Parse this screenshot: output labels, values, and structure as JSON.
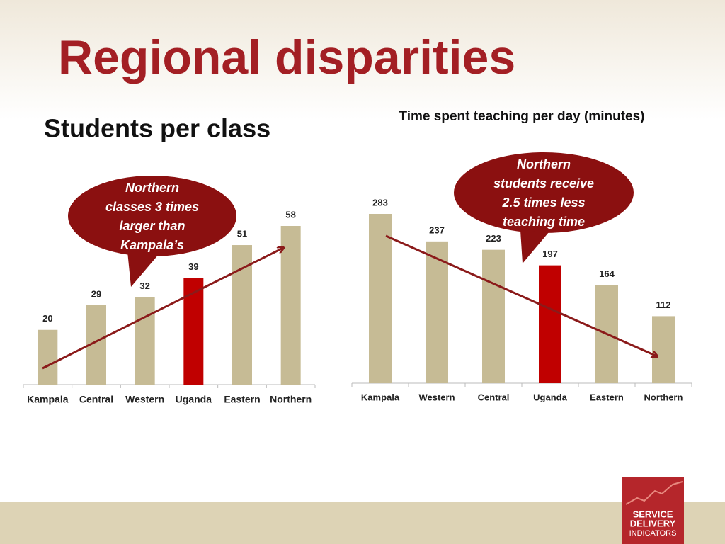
{
  "title": "Regional disparities",
  "logo": [
    "SERVICE",
    "DELIVERY",
    "INDICATORS"
  ],
  "chart_data": [
    {
      "type": "bar",
      "title": "Students per class",
      "categories": [
        "Kampala",
        "Central",
        "Western",
        "Uganda",
        "Eastern",
        "Northern"
      ],
      "values": [
        20,
        29,
        32,
        39,
        51,
        58
      ],
      "colors": [
        "#c6bb95",
        "#c6bb95",
        "#c6bb95",
        "#c00000",
        "#c6bb95",
        "#c6bb95"
      ],
      "annotation": [
        "Northern",
        "classes 3 times",
        "larger than",
        "Kampala’s"
      ]
    },
    {
      "type": "bar",
      "title": "Time spent teaching per day (minutes)",
      "categories": [
        "Kampala",
        "Western",
        "Central",
        "Uganda",
        "Eastern",
        "Northern"
      ],
      "values": [
        283,
        237,
        223,
        197,
        164,
        112
      ],
      "colors": [
        "#c6bb95",
        "#c6bb95",
        "#c6bb95",
        "#c00000",
        "#c6bb95",
        "#c6bb95"
      ],
      "annotation": [
        "Northern",
        "students receive",
        "2.5 times less",
        "teaching time"
      ]
    }
  ]
}
